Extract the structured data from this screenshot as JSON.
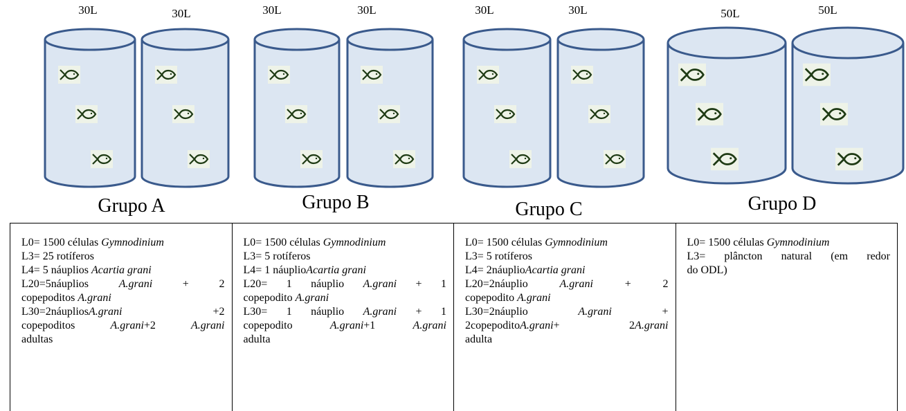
{
  "groups": [
    {
      "label": "Grupo A",
      "tanks": [
        "30L",
        "30L"
      ],
      "lines": [
        [
          {
            "text": "L0= 1500 células "
          },
          {
            "text": "Gymnodinium",
            "italic": true
          }
        ],
        [
          {
            "text": "L3= 25 rotíferos"
          }
        ],
        [
          {
            "text": "L4= 5 náuplios "
          },
          {
            "text": "Acartia grani",
            "italic": true
          }
        ],
        [
          {
            "text": "L20=5náuplios "
          },
          {
            "text": "A.grani",
            "italic": true
          },
          {
            "text": " + 2"
          }
        ],
        [
          {
            "text": "copepoditos "
          },
          {
            "text": "A.grani",
            "italic": true
          }
        ],
        [
          {
            "text": "L30=2náuplios"
          },
          {
            "text": "A.grani",
            "italic": true
          },
          {
            "text": " +2"
          }
        ],
        [
          {
            "text": "copepoditos "
          },
          {
            "text": "A.grani",
            "italic": true
          },
          {
            "text": "+2 "
          },
          {
            "text": "A.grani",
            "italic": true
          }
        ],
        [
          {
            "text": "adultas"
          }
        ]
      ]
    },
    {
      "label": "Grupo B",
      "tanks": [
        "30L",
        "30L"
      ],
      "lines": [
        [
          {
            "text": "L0= 1500 células "
          },
          {
            "text": "Gymnodinium",
            "italic": true
          }
        ],
        [
          {
            "text": "L3= 5 rotíferos"
          }
        ],
        [
          {
            "text": "L4= 1 náuplio"
          },
          {
            "text": "Acartia grani",
            "italic": true
          }
        ],
        [
          {
            "text": "L20= 1 náuplio "
          },
          {
            "text": "A.grani",
            "italic": true
          },
          {
            "text": " + 1"
          }
        ],
        [
          {
            "text": "copepodito "
          },
          {
            "text": "A.grani",
            "italic": true
          }
        ],
        [
          {
            "text": "L30= 1 náuplio "
          },
          {
            "text": "A.grani",
            "italic": true
          },
          {
            "text": " + 1"
          }
        ],
        [
          {
            "text": "copepodito "
          },
          {
            "text": "A.grani",
            "italic": true
          },
          {
            "text": "+1 "
          },
          {
            "text": "A.grani",
            "italic": true
          }
        ],
        [
          {
            "text": "adulta"
          }
        ]
      ]
    },
    {
      "label": "Grupo C",
      "tanks": [
        "30L",
        "30L"
      ],
      "lines": [
        [
          {
            "text": "L0= 1500 células "
          },
          {
            "text": "Gymnodinium",
            "italic": true
          }
        ],
        [
          {
            "text": "L3= 5 rotíferos"
          }
        ],
        [
          {
            "text": "L4= 2náuplio"
          },
          {
            "text": "Acartia grani",
            "italic": true
          }
        ],
        [
          {
            "text": "L20=2náuplio "
          },
          {
            "text": "A.grani",
            "italic": true
          },
          {
            "text": " + 2"
          }
        ],
        [
          {
            "text": "copepodito "
          },
          {
            "text": "A.grani",
            "italic": true
          }
        ],
        [
          {
            "text": "L30=2náuplio "
          },
          {
            "text": "A.grani",
            "italic": true
          },
          {
            "text": " +"
          }
        ],
        [
          {
            "text": "2copepodito"
          },
          {
            "text": "A.grani",
            "italic": true
          },
          {
            "text": "+ 2"
          },
          {
            "text": "A.grani",
            "italic": true
          }
        ],
        [
          {
            "text": "adulta"
          }
        ]
      ]
    },
    {
      "label": "Grupo D",
      "tanks": [
        "50L",
        "50L"
      ],
      "lines": [
        [
          {
            "text": "L0= 1500 células "
          },
          {
            "text": "Gymnodinium",
            "italic": true
          }
        ],
        [
          {
            "text": "L3= plâncton natural (em redor"
          }
        ],
        [
          {
            "text": "do ODL)"
          }
        ]
      ]
    }
  ]
}
